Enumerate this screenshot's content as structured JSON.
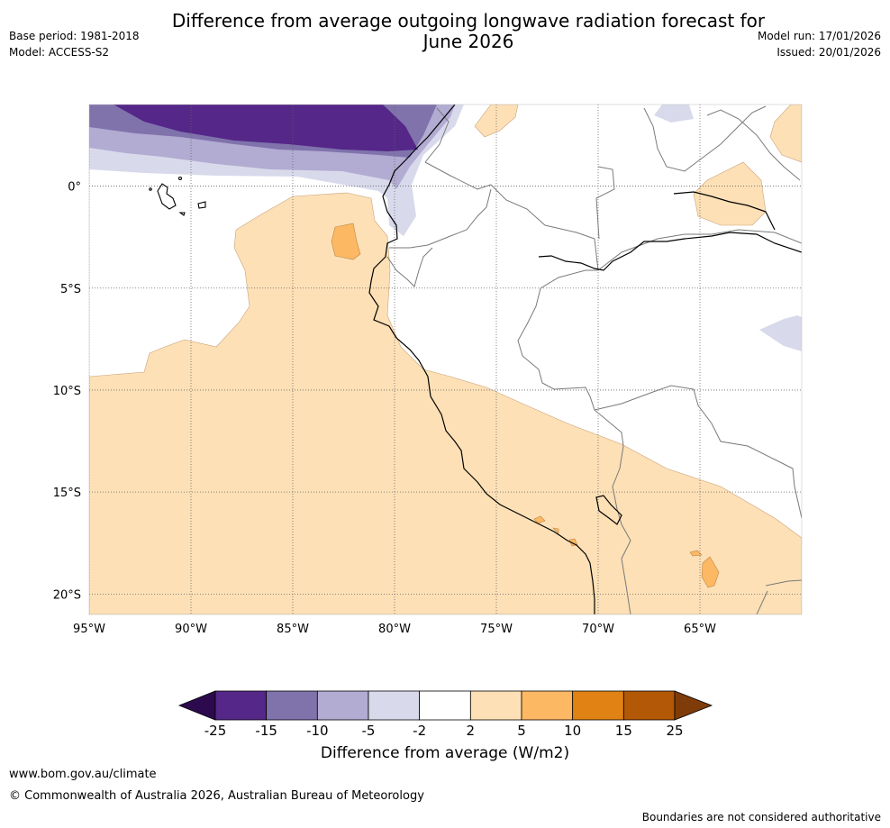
{
  "header": {
    "title_line1": "Difference from average outgoing longwave radiation forecast for",
    "title_line2": "June 2026",
    "base_period": "Base period: 1981-2018",
    "model": "Model: ACCESS-S2",
    "model_run": "Model run: 17/01/2026",
    "issued": "Issued: 20/01/2026"
  },
  "map": {
    "lat_labels": [
      "0°",
      "5°S",
      "10°S",
      "15°S",
      "20°S"
    ],
    "lon_labels": [
      "95°W",
      "90°W",
      "85°W",
      "80°W",
      "75°W",
      "70°W",
      "65°W"
    ],
    "lat_values": [
      0,
      -5,
      -10,
      -15,
      -20
    ],
    "lon_values": [
      -95,
      -90,
      -85,
      -80,
      -75,
      -70,
      -65
    ],
    "extent": {
      "lon_min": -95,
      "lon_max": -60,
      "lat_min": -21,
      "lat_max": 4
    },
    "anomaly_classes": [
      {
        "range": "< -25",
        "color": "#2d0a4e"
      },
      {
        "range": "-25 to -15",
        "color": "#542788"
      },
      {
        "range": "-15 to -10",
        "color": "#8073ac"
      },
      {
        "range": "-10 to -5",
        "color": "#b2abd2"
      },
      {
        "range": "-5 to -2",
        "color": "#d8daeb"
      },
      {
        "range": "-2 to 2",
        "color": "#ffffff"
      },
      {
        "range": "2 to 5",
        "color": "#fee0b6"
      },
      {
        "range": "5 to 10",
        "color": "#fdb863"
      },
      {
        "range": "10 to 15",
        "color": "#e08214"
      },
      {
        "range": "15 to 25",
        "color": "#b35806"
      },
      {
        "range": "> 25",
        "color": "#7f3b08"
      }
    ]
  },
  "legend": {
    "ticks": [
      "-25",
      "-15",
      "-10",
      "-5",
      "-2",
      "2",
      "5",
      "10",
      "15",
      "25"
    ],
    "label": "Difference from average (W/m2)"
  },
  "footer": {
    "url": "www.bom.gov.au/climate",
    "copyright": "© Commonwealth of Australia 2026, Australian Bureau of Meteorology",
    "disclaimer": "Boundaries are not considered authoritative"
  }
}
